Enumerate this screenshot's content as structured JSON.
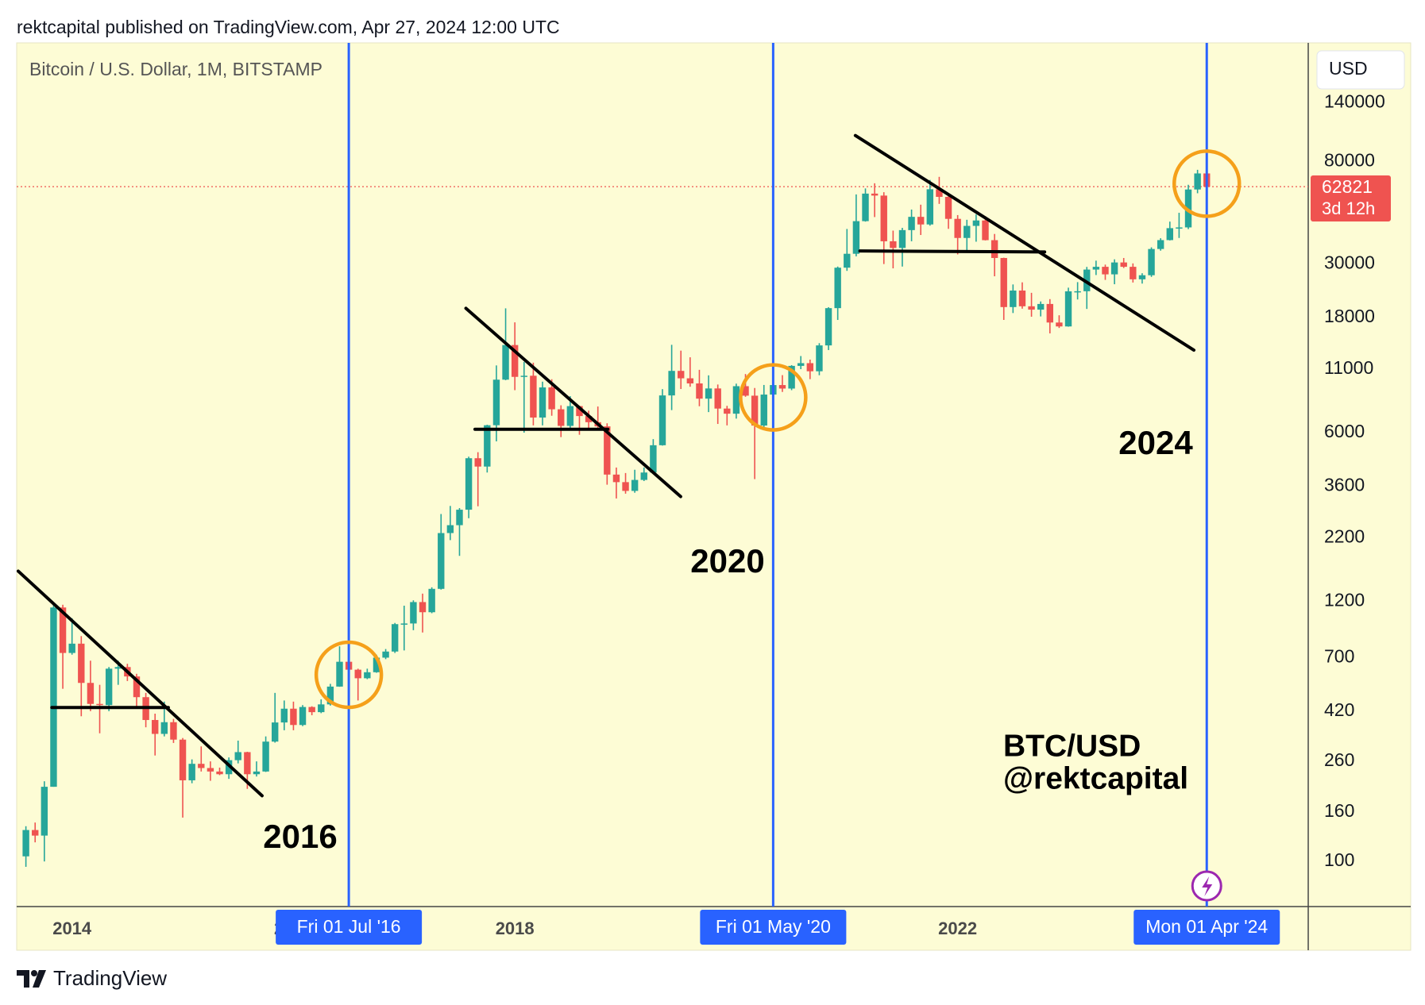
{
  "header": "rektcapital published on TradingView.com, Apr 27, 2024 12:00 UTC",
  "footer": "TradingView",
  "chart_data": {
    "type": "candlestick",
    "title": "Bitcoin / U.S. Dollar, 1M, BITSTAMP",
    "currency": "USD",
    "log_scale": true,
    "grid": false,
    "colors": {
      "up": "#26a69a",
      "down": "#ef5350",
      "marker": "#2962ff",
      "circle": "#f5a01a"
    },
    "x": [
      "2013-08",
      "2013-09",
      "2013-10",
      "2013-11",
      "2013-12",
      "2014-01",
      "2014-02",
      "2014-03",
      "2014-04",
      "2014-05",
      "2014-06",
      "2014-07",
      "2014-08",
      "2014-09",
      "2014-10",
      "2014-11",
      "2014-12",
      "2015-01",
      "2015-02",
      "2015-03",
      "2015-04",
      "2015-05",
      "2015-06",
      "2015-07",
      "2015-08",
      "2015-09",
      "2015-10",
      "2015-11",
      "2015-12",
      "2016-01",
      "2016-02",
      "2016-03",
      "2016-04",
      "2016-05",
      "2016-06",
      "2016-07",
      "2016-08",
      "2016-09",
      "2016-10",
      "2016-11",
      "2016-12",
      "2017-01",
      "2017-02",
      "2017-03",
      "2017-04",
      "2017-05",
      "2017-06",
      "2017-07",
      "2017-08",
      "2017-09",
      "2017-10",
      "2017-11",
      "2017-12",
      "2018-01",
      "2018-02",
      "2018-03",
      "2018-04",
      "2018-05",
      "2018-06",
      "2018-07",
      "2018-08",
      "2018-09",
      "2018-10",
      "2018-11",
      "2018-12",
      "2019-01",
      "2019-02",
      "2019-03",
      "2019-04",
      "2019-05",
      "2019-06",
      "2019-07",
      "2019-08",
      "2019-09",
      "2019-10",
      "2019-11",
      "2019-12",
      "2020-01",
      "2020-02",
      "2020-03",
      "2020-04",
      "2020-05",
      "2020-06",
      "2020-07",
      "2020-08",
      "2020-09",
      "2020-10",
      "2020-11",
      "2020-12",
      "2021-01",
      "2021-02",
      "2021-03",
      "2021-04",
      "2021-05",
      "2021-06",
      "2021-07",
      "2021-08",
      "2021-09",
      "2021-10",
      "2021-11",
      "2021-12",
      "2022-01",
      "2022-02",
      "2022-03",
      "2022-04",
      "2022-05",
      "2022-06",
      "2022-07",
      "2022-08",
      "2022-09",
      "2022-10",
      "2022-11",
      "2022-12",
      "2023-01",
      "2023-02",
      "2023-03",
      "2023-04",
      "2023-05",
      "2023-06",
      "2023-07",
      "2023-08",
      "2023-09",
      "2023-10",
      "2023-11",
      "2023-12",
      "2024-01",
      "2024-02",
      "2024-03",
      "2024-04"
    ],
    "open": [
      105,
      135,
      128,
      204,
      1130,
      732,
      800,
      550,
      450,
      445,
      630,
      640,
      585,
      480,
      386,
      338,
      378,
      320,
      217,
      254,
      244,
      236,
      230,
      263,
      284,
      230,
      236,
      314,
      377,
      430,
      368,
      437,
      416,
      448,
      531,
      673,
      624,
      575,
      609,
      700,
      742,
      964,
      970,
      1190,
      1080,
      1350,
      2300,
      2480,
      2875,
      4700,
      4340,
      6440,
      9950,
      13850,
      10220,
      10330,
      6930,
      9240,
      7500,
      6400,
      7730,
      7030,
      6630,
      6370,
      4020,
      3740,
      3440,
      3820,
      4100,
      5320,
      8560,
      10820,
      10080,
      9600,
      8300,
      9150,
      7550,
      7190,
      9350,
      8540,
      6420,
      8630,
      9450,
      9140,
      11350,
      11650,
      10780,
      13800,
      19700,
      28990,
      33100,
      45200,
      58800,
      57700,
      37300,
      35000,
      41500,
      47100,
      43800,
      61300,
      57000,
      46200,
      38500,
      43200,
      45500,
      37700,
      31800,
      19900,
      23300,
      20050,
      19420,
      20500,
      17170,
      16540,
      23130,
      23150,
      28470,
      29230,
      27200,
      30470,
      29230,
      25940,
      26970,
      34650,
      37720,
      42280,
      42580,
      61160,
      71290
    ],
    "high": [
      140,
      145,
      215,
      1160,
      1160,
      1020,
      860,
      680,
      540,
      640,
      680,
      660,
      600,
      500,
      410,
      460,
      390,
      325,
      265,
      300,
      260,
      245,
      270,
      317,
      285,
      260,
      330,
      500,
      465,
      460,
      445,
      440,
      470,
      545,
      780,
      680,
      630,
      630,
      720,
      760,
      975,
      1150,
      1210,
      1290,
      1370,
      2760,
      2980,
      2920,
      4770,
      4980,
      6470,
      11400,
      19660,
      17200,
      11790,
      11700,
      9760,
      9990,
      7790,
      8500,
      7760,
      7400,
      7700,
      6560,
      4300,
      4080,
      4210,
      4300,
      5640,
      9090,
      13880,
      13130,
      12320,
      10930,
      10370,
      9500,
      7750,
      9580,
      10500,
      9190,
      9460,
      10060,
      10390,
      11430,
      12470,
      12050,
      14100,
      19880,
      29300,
      41950,
      58350,
      61780,
      64900,
      59600,
      41300,
      42400,
      50500,
      52900,
      67000,
      69000,
      59100,
      47900,
      45800,
      48200,
      47400,
      40000,
      31900,
      24700,
      25200,
      22800,
      21000,
      21470,
      18400,
      23950,
      25250,
      29200,
      31000,
      29850,
      31390,
      31800,
      30200,
      27490,
      35200,
      38400,
      45000,
      48960,
      63970,
      73800,
      72800
    ],
    "low": [
      95,
      120,
      100,
      204,
      520,
      720,
      400,
      420,
      340,
      420,
      540,
      560,
      440,
      360,
      275,
      330,
      310,
      152,
      211,
      236,
      216,
      228,
      220,
      255,
      200,
      225,
      235,
      311,
      350,
      350,
      364,
      404,
      412,
      443,
      530,
      465,
      465,
      570,
      606,
      690,
      732,
      750,
      910,
      890,
      1070,
      1340,
      2150,
      1850,
      2650,
      2970,
      4100,
      5520,
      9900,
      9000,
      6000,
      6430,
      6430,
      7050,
      5750,
      6120,
      5880,
      6120,
      6190,
      3650,
      3200,
      3350,
      3380,
      3780,
      4050,
      5300,
      7440,
      9100,
      9300,
      7720,
      7300,
      6520,
      6430,
      6860,
      8450,
      3850,
      6200,
      8100,
      8850,
      9000,
      11000,
      10000,
      10380,
      13200,
      17600,
      28120,
      32300,
      45000,
      47000,
      30000,
      28800,
      29300,
      37300,
      39600,
      43300,
      53300,
      42000,
      32900,
      34300,
      37150,
      37600,
      26700,
      17600,
      18800,
      19600,
      18150,
      18200,
      15480,
      16300,
      16500,
      21400,
      19550,
      27020,
      25800,
      24750,
      28900,
      25160,
      24900,
      26550,
      34100,
      37600,
      38500,
      41900,
      59000,
      59600
    ],
    "close": [
      135,
      128,
      204,
      1130,
      732,
      800,
      550,
      450,
      445,
      630,
      640,
      585,
      480,
      386,
      338,
      378,
      320,
      217,
      254,
      244,
      236,
      230,
      263,
      284,
      230,
      236,
      314,
      377,
      430,
      368,
      437,
      416,
      448,
      531,
      673,
      624,
      575,
      609,
      700,
      742,
      964,
      970,
      1190,
      1080,
      1350,
      2300,
      2480,
      2875,
      4700,
      4340,
      6440,
      9950,
      13850,
      10220,
      10330,
      6930,
      9240,
      7500,
      6400,
      7730,
      7030,
      6630,
      6370,
      4020,
      3740,
      3440,
      3820,
      4100,
      5320,
      8560,
      10820,
      10080,
      9600,
      8300,
      9150,
      7550,
      7190,
      9350,
      8540,
      6420,
      8630,
      9450,
      9140,
      11350,
      11650,
      10780,
      13800,
      19700,
      28990,
      33100,
      45200,
      58800,
      57700,
      37300,
      35000,
      41500,
      47100,
      43800,
      61300,
      57000,
      46200,
      38500,
      43200,
      45500,
      37700,
      31800,
      19900,
      23300,
      20050,
      19420,
      20500,
      17170,
      16540,
      23130,
      23150,
      28470,
      29230,
      27200,
      30470,
      29230,
      25940,
      26970,
      34650,
      37720,
      42280,
      42580,
      61160,
      71290,
      62821
    ],
    "xlim": [
      "2013-07",
      "2025-03"
    ],
    "xticks": [
      {
        "value": "2014-01",
        "label": "2014"
      },
      {
        "value": "2016-01",
        "label": "2016"
      },
      {
        "value": "2018-01",
        "label": "2018"
      },
      {
        "value": "2020-01",
        "label": "2020"
      },
      {
        "value": "2022-01",
        "label": "2022"
      },
      {
        "value": "2024-01",
        "label": "2024"
      }
    ],
    "ylim": [
      65,
      248000
    ],
    "yticks": [
      100,
      160,
      260,
      420,
      700,
      1200,
      2200,
      3600,
      6000,
      11000,
      18000,
      30000,
      80000,
      140000
    ],
    "last_price": 62821,
    "countdown": "3d 12h",
    "markers": [
      {
        "x": "2016-07",
        "label": "Fri 01 Jul '16"
      },
      {
        "x": "2020-05",
        "label": "Fri 01 May '20"
      },
      {
        "x": "2024-04",
        "label": "Mon 01 Apr '24"
      }
    ],
    "annotations": [
      "2016",
      "2020",
      "2024"
    ],
    "watermark": [
      "BTC/USD",
      "@rektcapital"
    ]
  }
}
